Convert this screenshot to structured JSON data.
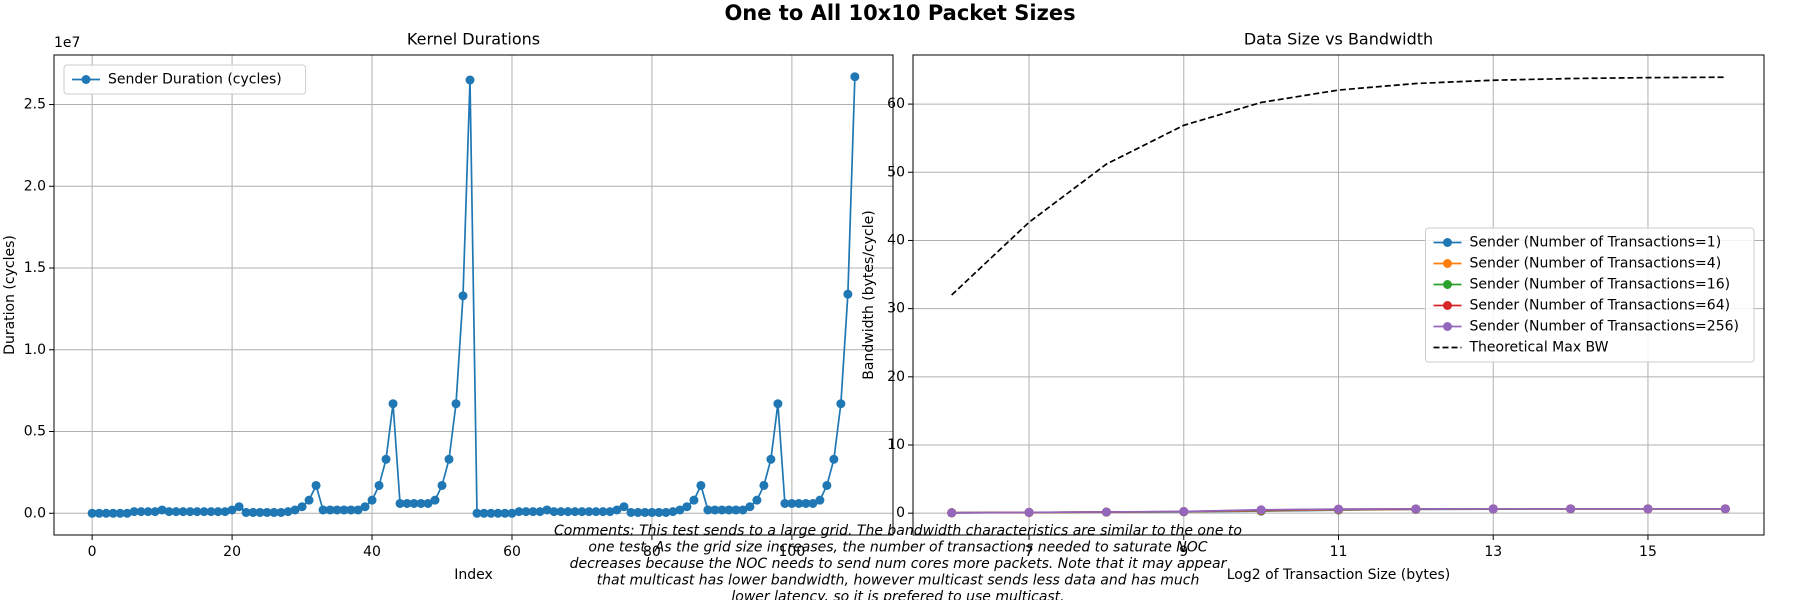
{
  "title": "One to All 10x10 Packet Sizes",
  "comments": [
    "Comments: This test sends to a large grid. The bandwidth characteristics are similar to the one to",
    "one test. As the grid size increases, the number of transactions needed to saturate NOC",
    "decreases because the NOC needs to send num cores more packets. Note that it may appear",
    "that multicast has lower bandwidth, however multicast sends less data and has much",
    "lower latency, so it is prefered to use multicast."
  ],
  "chart_data": [
    {
      "type": "line",
      "title": "Kernel Durations",
      "xlabel": "Index",
      "ylabel": "Duration (cycles)",
      "y_offset_label": "1e7",
      "x": [
        0,
        1,
        2,
        3,
        4,
        5,
        6,
        7,
        8,
        9,
        10,
        11,
        12,
        13,
        14,
        15,
        16,
        17,
        18,
        19,
        20,
        21,
        22,
        23,
        24,
        25,
        26,
        27,
        28,
        29,
        30,
        31,
        32,
        33,
        34,
        35,
        36,
        37,
        38,
        39,
        40,
        41,
        42,
        43,
        44,
        45,
        46,
        47,
        48,
        49,
        50,
        51,
        52,
        53,
        54,
        55,
        56,
        57,
        58,
        59,
        60,
        61,
        62,
        63,
        64,
        65,
        66,
        67,
        68,
        69,
        70,
        71,
        72,
        73,
        74,
        75,
        76,
        77,
        78,
        79,
        80,
        81,
        82,
        83,
        84,
        85,
        86,
        87,
        88,
        89,
        90,
        91,
        92,
        93,
        94,
        95,
        96,
        97,
        98,
        99,
        100,
        101,
        102,
        103,
        104,
        105,
        106,
        107,
        108,
        109
      ],
      "series": [
        {
          "name": "Sender Duration (cycles)",
          "color": "#1f77b4",
          "marker": "o",
          "linestyle": "solid",
          "values": [
            0,
            0,
            0,
            0,
            0,
            0,
            0.01,
            0.01,
            0.01,
            0.01,
            0.02,
            0.01,
            0.01,
            0.01,
            0.01,
            0.01,
            0.01,
            0.01,
            0.01,
            0.01,
            0.02,
            0.04,
            0.005,
            0.005,
            0.005,
            0.005,
            0.005,
            0.005,
            0.01,
            0.02,
            0.04,
            0.08,
            0.17,
            0.02,
            0.02,
            0.02,
            0.02,
            0.02,
            0.02,
            0.04,
            0.08,
            0.17,
            0.33,
            0.67,
            0.06,
            0.06,
            0.06,
            0.06,
            0.06,
            0.08,
            0.17,
            0.33,
            0.67,
            1.33,
            2.65,
            0,
            0,
            0,
            0,
            0,
            0,
            0.01,
            0.01,
            0.01,
            0.01,
            0.02,
            0.01,
            0.01,
            0.01,
            0.01,
            0.01,
            0.01,
            0.01,
            0.01,
            0.01,
            0.02,
            0.04,
            0.005,
            0.005,
            0.005,
            0.005,
            0.005,
            0.005,
            0.01,
            0.02,
            0.04,
            0.08,
            0.17,
            0.02,
            0.02,
            0.02,
            0.02,
            0.02,
            0.02,
            0.04,
            0.08,
            0.17,
            0.33,
            0.67,
            0.06,
            0.06,
            0.06,
            0.06,
            0.06,
            0.08,
            0.17,
            0.33,
            0.67,
            1.34,
            2.67
          ]
        }
      ],
      "xlim": [
        -5.45,
        114.45
      ],
      "xticks": [
        0,
        20,
        40,
        60,
        80,
        100
      ],
      "ylim": [
        -0.133,
        2.803
      ],
      "yticks": [
        {
          "value": 0,
          "label": "0.0"
        },
        0.5,
        {
          "value": 1,
          "label": "1.0"
        },
        1.5,
        {
          "value": 2,
          "label": "2.0"
        },
        2.5
      ],
      "grid": true,
      "legend": "upper left"
    },
    {
      "type": "line",
      "title": "Data Size vs Bandwidth",
      "xlabel": "Log2 of Transaction Size (bytes)",
      "ylabel": "Bandwidth (bytes/cycle)",
      "x": [
        6,
        7,
        8,
        9,
        10,
        11,
        12,
        13,
        14,
        15,
        16
      ],
      "series": [
        {
          "name": "Sender (Number of Transactions=1)",
          "color": "#1f77b4",
          "marker": "o",
          "linestyle": "solid",
          "values": [
            0.05,
            0.1,
            0.15,
            0.2,
            0.3,
            0.45,
            0.55,
            0.6,
            0.62,
            0.62,
            0.63
          ]
        },
        {
          "name": "Sender (Number of Transactions=4)",
          "color": "#ff7f0e",
          "marker": "o",
          "linestyle": "solid",
          "values": [
            0.06,
            0.1,
            0.15,
            0.22,
            0.35,
            0.5,
            0.58,
            0.62,
            0.63,
            0.63,
            0.63
          ]
        },
        {
          "name": "Sender (Number of Transactions=16)",
          "color": "#2ca02c",
          "marker": "o",
          "linestyle": "solid",
          "values": [
            0.06,
            0.11,
            0.16,
            0.23,
            0.4,
            0.55,
            0.6,
            0.63,
            0.64,
            0.64,
            0.64
          ]
        },
        {
          "name": "Sender (Number of Transactions=64)",
          "color": "#d62728",
          "marker": "o",
          "linestyle": "solid",
          "values": [
            0.06,
            0.11,
            0.17,
            0.24,
            0.45,
            0.58,
            0.62,
            0.64,
            0.64,
            0.64,
            0.64
          ]
        },
        {
          "name": "Sender (Number of Transactions=256)",
          "color": "#9467bd",
          "marker": "o",
          "linestyle": "solid",
          "values": [
            0.06,
            0.12,
            0.18,
            0.25,
            0.5,
            0.6,
            0.63,
            0.64,
            0.64,
            0.64,
            0.64
          ]
        },
        {
          "name": "Theoretical Max BW",
          "color": "#000000",
          "marker": "none",
          "linestyle": "dashed",
          "values": [
            32,
            42.67,
            51.2,
            56.89,
            60.24,
            62.06,
            63.02,
            63.5,
            63.75,
            63.88,
            63.94
          ]
        }
      ],
      "xlim": [
        5.5,
        16.5
      ],
      "xticks": [
        7,
        9,
        11,
        13,
        15
      ],
      "ylim": [
        -3.2,
        67.2
      ],
      "yticks": [
        0,
        10,
        20,
        30,
        40,
        50,
        60
      ],
      "grid": true,
      "legend": "center right"
    }
  ]
}
